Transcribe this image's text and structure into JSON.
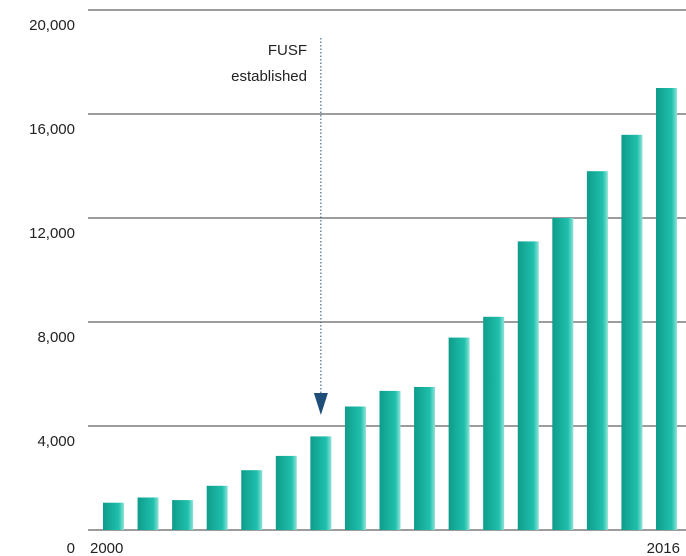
{
  "chart_data": {
    "type": "bar",
    "title": "",
    "xlabel": "",
    "ylabel": "",
    "ylim": [
      0,
      20000
    ],
    "yticks": [
      {
        "value": 0,
        "label": "0"
      },
      {
        "value": 4000,
        "label": "4,000"
      },
      {
        "value": 8000,
        "label": "8,000"
      },
      {
        "value": 12000,
        "label": "12,000"
      },
      {
        "value": 16000,
        "label": "16,000"
      },
      {
        "value": 20000,
        "label": "20,000"
      }
    ],
    "grid": true,
    "categories": [
      "2000",
      "2001",
      "2002",
      "2003",
      "2004",
      "2005",
      "2006",
      "2007",
      "2008",
      "2009",
      "2010",
      "2011",
      "2012",
      "2013",
      "2014",
      "2015",
      "2016"
    ],
    "x_tick_labels": {
      "first": "2000",
      "last": "2016"
    },
    "values": [
      1050,
      1250,
      1150,
      1700,
      2300,
      2850,
      3600,
      4750,
      5350,
      5500,
      7400,
      8200,
      11100,
      12000,
      13800,
      15200,
      17000
    ],
    "bar_color": "#17b3a1",
    "annotation": {
      "lines": [
        "FUSF",
        "established"
      ],
      "at_category": "2006",
      "arrow_color": "#1f4e79"
    }
  }
}
